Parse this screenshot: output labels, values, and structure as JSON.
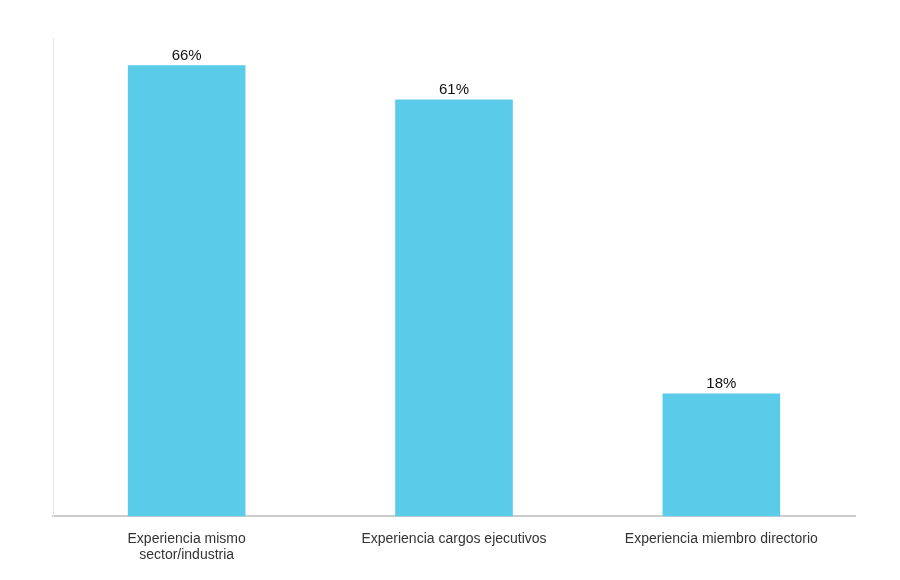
{
  "chart_data": {
    "type": "bar",
    "categories": [
      "Experiencia mismo sector/industria",
      "Experiencia cargos ejecutivos",
      "Experiencia miembro directorio"
    ],
    "values": [
      66,
      61,
      18
    ],
    "value_labels": [
      "66%",
      "61%",
      "18%"
    ],
    "color": "#5bcbea",
    "ylim": [
      0,
      70
    ],
    "grid": false,
    "data_labels": true,
    "tick_labels": "x"
  }
}
